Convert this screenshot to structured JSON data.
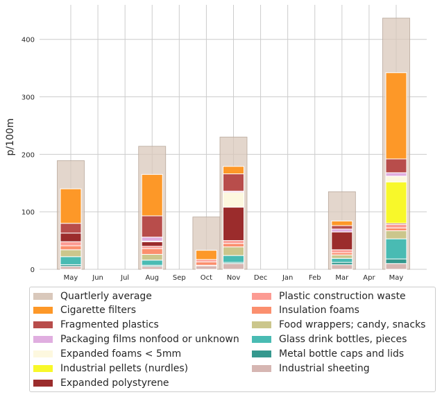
{
  "chart_data": {
    "type": "bar",
    "ylabel": "p/100m",
    "ylim": [
      0,
      460
    ],
    "yticks": [
      0,
      100,
      200,
      300,
      400
    ],
    "grid": true,
    "categories": [
      "May",
      "Jun",
      "Jul",
      "Aug",
      "Sep",
      "Oct",
      "Nov",
      "Dec",
      "Jan",
      "Feb",
      "Mar",
      "Apr",
      "May"
    ],
    "quarterly_average": {
      "name": "Quartlerly average",
      "color": "#d9c8bb",
      "values": [
        189,
        214,
        91,
        230,
        135,
        437
      ],
      "anchor_months": [
        0,
        3,
        5,
        6,
        10,
        12
      ]
    },
    "monthly_stack_order": [
      "Industrial sheeting",
      "Metal bottle caps and lids",
      "Glass drink bottles, pieces",
      "Food wrappers; candy, snacks",
      "Insulation foams",
      "Plastic construction waste",
      "Expanded polystyrene",
      "Industrial pellets (nurdles)",
      "Expanded foams < 5mm",
      "Packaging films nonfood or unknown",
      "Fragmented plastics",
      "Cigarette filters"
    ],
    "series": [
      {
        "name": "Cigarette filters",
        "color": "#fd9828",
        "values": [
          60,
          0,
          0,
          72,
          0,
          16,
          13,
          0,
          0,
          0,
          8,
          0,
          150
        ]
      },
      {
        "name": "Fragmented plastics",
        "color": "#b84d4b",
        "values": [
          17,
          0,
          0,
          37,
          0,
          0,
          30,
          0,
          0,
          0,
          6,
          0,
          24
        ]
      },
      {
        "name": "Packaging films nonfood or unknown",
        "color": "#e0aee0",
        "values": [
          0,
          0,
          0,
          7,
          0,
          0,
          2,
          0,
          0,
          0,
          5,
          0,
          6
        ]
      },
      {
        "name": "Expanded foams < 5mm",
        "color": "#fdf8df",
        "values": [
          0,
          0,
          0,
          1,
          0,
          0,
          26,
          0,
          0,
          0,
          0,
          0,
          10
        ]
      },
      {
        "name": "Industrial pellets (nurdles)",
        "color": "#f8f82a",
        "values": [
          0,
          0,
          0,
          0,
          0,
          0,
          0,
          0,
          0,
          0,
          0,
          0,
          72
        ]
      },
      {
        "name": "Expanded polystyrene",
        "color": "#9b2c2c",
        "values": [
          15,
          0,
          0,
          8,
          0,
          0,
          58,
          0,
          0,
          0,
          31,
          0,
          2
        ]
      },
      {
        "name": "Plastic construction waste",
        "color": "#fc9b93",
        "values": [
          7,
          0,
          0,
          4,
          0,
          4,
          5,
          0,
          0,
          0,
          5,
          0,
          6
        ]
      },
      {
        "name": "Insulation foams",
        "color": "#fb8f6e",
        "values": [
          7,
          0,
          0,
          10,
          0,
          6,
          6,
          0,
          0,
          0,
          4,
          0,
          5
        ]
      },
      {
        "name": "Food wrappers; candy, snacks",
        "color": "#cbc68c",
        "values": [
          12,
          0,
          0,
          10,
          0,
          0,
          15,
          0,
          0,
          0,
          6,
          0,
          14
        ]
      },
      {
        "name": "Glass drink bottles, pieces",
        "color": "#49bbb3",
        "values": [
          14,
          0,
          0,
          9,
          0,
          1,
          12,
          0,
          0,
          0,
          7,
          0,
          35
        ]
      },
      {
        "name": "Metal bottle caps and lids",
        "color": "#35988e",
        "values": [
          3,
          0,
          0,
          2,
          0,
          0,
          2,
          0,
          0,
          0,
          4,
          0,
          8
        ]
      },
      {
        "name": "Industrial sheeting",
        "color": "#d6b6b2",
        "values": [
          5,
          0,
          0,
          5,
          0,
          6,
          10,
          0,
          0,
          0,
          8,
          0,
          10
        ]
      }
    ]
  }
}
